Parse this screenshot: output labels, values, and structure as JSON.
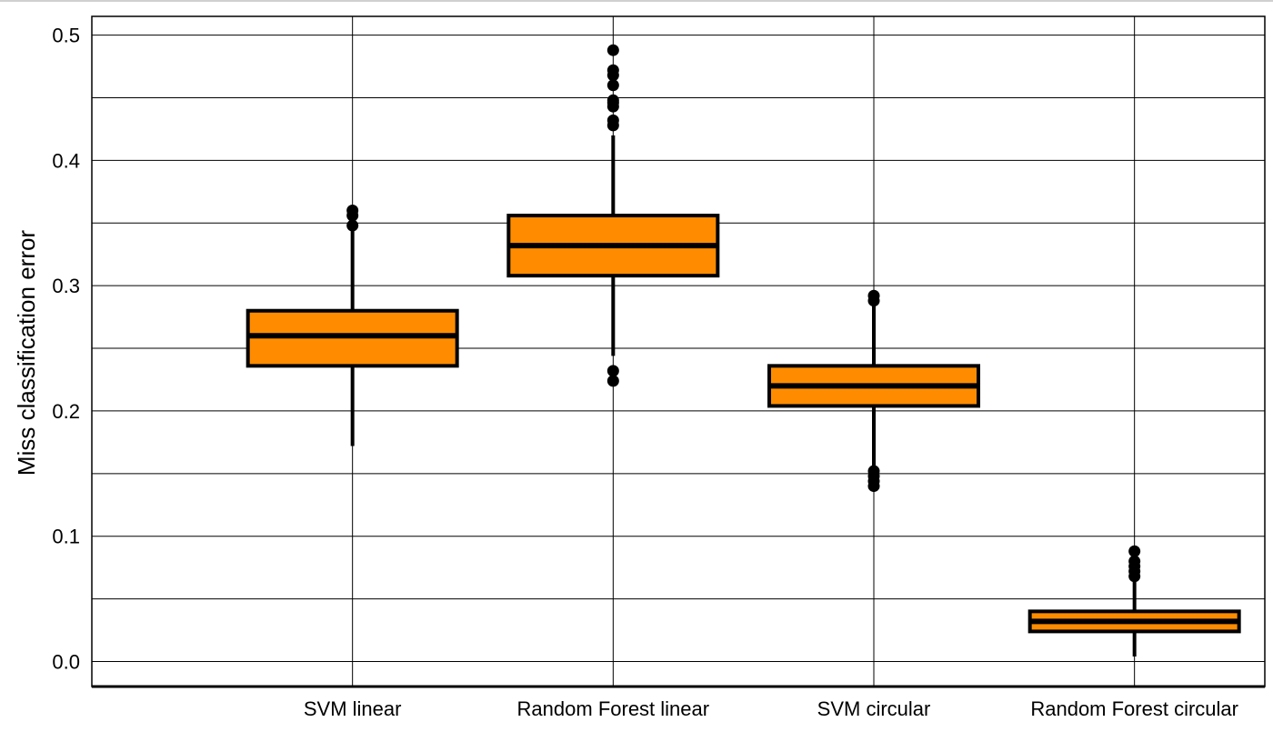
{
  "chart_data": {
    "type": "box",
    "title": "",
    "xlabel": "",
    "ylabel": "Miss classification error",
    "ylim": [
      -0.02,
      0.515
    ],
    "yticks": [
      0.0,
      0.1,
      0.2,
      0.3,
      0.4,
      0.5
    ],
    "ytick_labels": [
      "0.0",
      "0.1",
      "0.2",
      "0.3",
      "0.4",
      "0.5"
    ],
    "grid": true,
    "box_color": "#ff8c00",
    "edge_color": "#000000",
    "categories": [
      "SVM linear",
      "Random Forest linear",
      "SVM circular",
      "Random Forest circular"
    ],
    "boxes": [
      {
        "label": "SVM linear",
        "whisker_low": 0.172,
        "q1": 0.236,
        "median": 0.26,
        "q3": 0.28,
        "whisker_high": 0.346,
        "outliers": [
          0.348,
          0.356,
          0.36
        ]
      },
      {
        "label": "Random Forest linear",
        "whisker_low": 0.244,
        "q1": 0.308,
        "median": 0.332,
        "q3": 0.356,
        "whisker_high": 0.42,
        "outliers": [
          0.224,
          0.232,
          0.428,
          0.432,
          0.443,
          0.446,
          0.448,
          0.46,
          0.468,
          0.472,
          0.488
        ]
      },
      {
        "label": "SVM circular",
        "whisker_low": 0.156,
        "q1": 0.204,
        "median": 0.22,
        "q3": 0.236,
        "whisker_high": 0.284,
        "outliers": [
          0.14,
          0.144,
          0.148,
          0.152,
          0.288,
          0.292
        ]
      },
      {
        "label": "Random Forest circular",
        "whisker_low": 0.004,
        "q1": 0.024,
        "median": 0.032,
        "q3": 0.04,
        "whisker_high": 0.064,
        "outliers": [
          0.068,
          0.072,
          0.076,
          0.08,
          0.088
        ]
      }
    ]
  }
}
